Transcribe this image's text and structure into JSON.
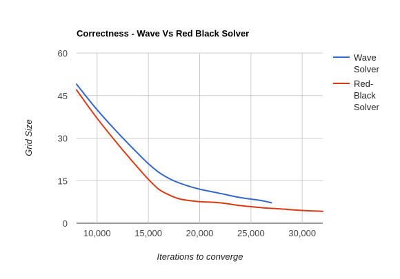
{
  "chart_data": {
    "type": "line",
    "title": "Correctness - Wave Vs Red Black Solver",
    "xlabel": "Iterations to converge",
    "ylabel": "Grid Size",
    "xlim": [
      8000,
      32000
    ],
    "ylim": [
      0,
      60
    ],
    "x_ticks": [
      10000,
      15000,
      20000,
      25000,
      30000
    ],
    "x_tick_labels": [
      "10,000",
      "15,000",
      "20,000",
      "25,000",
      "30,000"
    ],
    "y_ticks": [
      0,
      15,
      30,
      45,
      60
    ],
    "y_tick_labels": [
      "0",
      "15",
      "30",
      "45",
      "60"
    ],
    "grid": true,
    "legend_position": "right",
    "series": [
      {
        "name": "Wave Solver",
        "legend_lines": [
          "Wave",
          "Solver"
        ],
        "color": "#3366cc",
        "points": [
          [
            8000,
            49
          ],
          [
            10000,
            40
          ],
          [
            12000,
            32
          ],
          [
            14000,
            24.5
          ],
          [
            15000,
            21
          ],
          [
            16000,
            18
          ],
          [
            17000,
            15.8
          ],
          [
            18000,
            14.2
          ],
          [
            19000,
            13
          ],
          [
            20000,
            12
          ],
          [
            22000,
            10.5
          ],
          [
            24000,
            9
          ],
          [
            26000,
            8
          ],
          [
            27000,
            7.2
          ]
        ]
      },
      {
        "name": "Red-Black Solver",
        "legend_lines": [
          "Red-",
          "Black",
          "Solver"
        ],
        "color": "#dc3912",
        "points": [
          [
            8000,
            47
          ],
          [
            10000,
            37
          ],
          [
            12000,
            28
          ],
          [
            14000,
            19.5
          ],
          [
            15000,
            15.5
          ],
          [
            16000,
            12
          ],
          [
            17000,
            10
          ],
          [
            18000,
            8.6
          ],
          [
            19000,
            8
          ],
          [
            20000,
            7.6
          ],
          [
            22000,
            7.2
          ],
          [
            24000,
            6.2
          ],
          [
            26000,
            5.5
          ],
          [
            28000,
            5
          ],
          [
            30000,
            4.5
          ],
          [
            32000,
            4.2
          ]
        ]
      }
    ]
  }
}
